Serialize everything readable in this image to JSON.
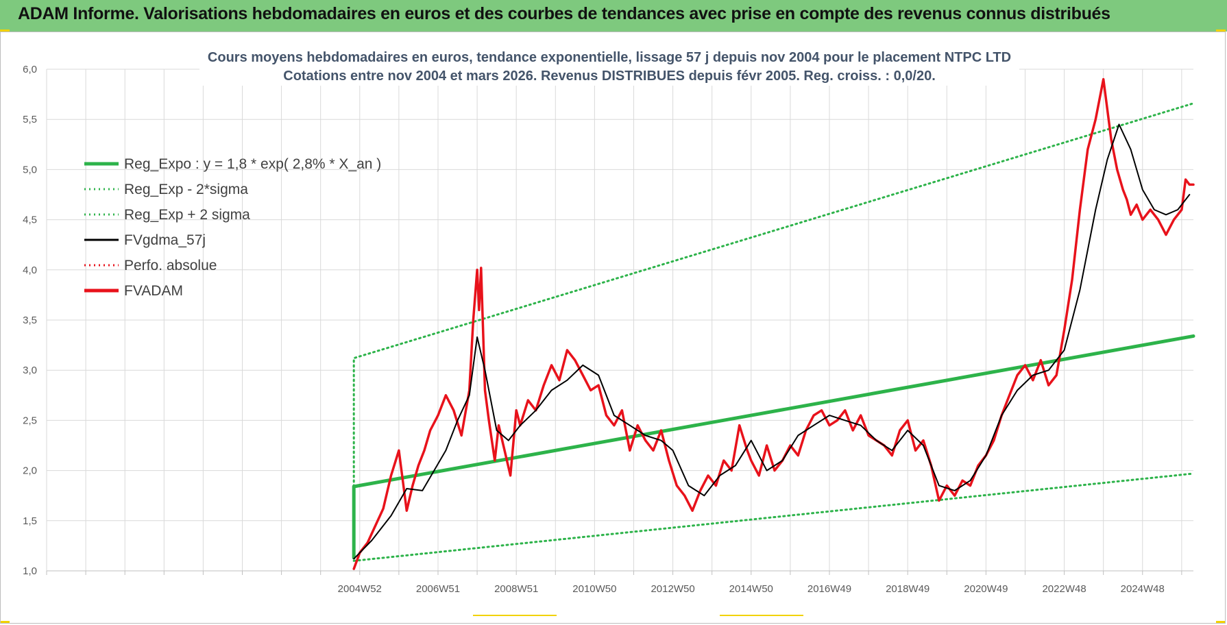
{
  "header": {
    "title": "ADAM Informe. Valorisations hebdomadaires en euros et des courbes de tendances avec prise en compte des revenus connus distribués"
  },
  "colors": {
    "banner": "#7ec97e",
    "reg_expo": "#2db34a",
    "sigma_bands": "#2db34a",
    "fvgdma": "#000000",
    "perfo_absolue": "#e8121b",
    "fvadam": "#e8121b"
  },
  "chart_data": {
    "type": "line",
    "title": "Cours moyens hebdomadaires en euros, tendance exponentielle, lissage 57 j depuis nov 2004 pour le placement NTPC LTD",
    "subtitle": "Cotations entre nov 2004 et mars 2026. Revenus DISTRIBUES depuis févr 2005. Reg. croiss. : 0,0/20.",
    "xlabel": "",
    "ylabel": "",
    "ylim": [
      1.0,
      6.0
    ],
    "yticks": [
      "1,0",
      "1,5",
      "2,0",
      "2,5",
      "3,0",
      "3,5",
      "4,0",
      "4,5",
      "5,0",
      "5,5",
      "6,0"
    ],
    "xlim": [
      1997.0,
      2026.3
    ],
    "xticks": [
      {
        "label": "2004W52",
        "x": 2005.0
      },
      {
        "label": "2006W51",
        "x": 2007.0
      },
      {
        "label": "2008W51",
        "x": 2009.0
      },
      {
        "label": "2010W50",
        "x": 2011.0
      },
      {
        "label": "2012W50",
        "x": 2013.0
      },
      {
        "label": "2014W50",
        "x": 2015.0
      },
      {
        "label": "2016W49",
        "x": 2017.0
      },
      {
        "label": "2018W49",
        "x": 2019.0
      },
      {
        "label": "2020W49",
        "x": 2021.0
      },
      {
        "label": "2022W48",
        "x": 2023.0
      },
      {
        "label": "2024W48",
        "x": 2025.0
      }
    ],
    "grid": true,
    "legend_placement": "top-left",
    "series": [
      {
        "name": "Reg_Expo : y = 1,8 * exp( 2,8% *  X_an )",
        "style": "solid-thick",
        "color": "#2db34a",
        "x": [
          2004.85,
          2004.85,
          2026.3
        ],
        "y": [
          1.13,
          1.84,
          3.34
        ]
      },
      {
        "name": "Reg_Exp - 2*sigma",
        "style": "dotted",
        "color": "#2db34a",
        "x": [
          2004.85,
          2026.3
        ],
        "y": [
          1.1,
          1.97
        ]
      },
      {
        "name": "Reg_Exp + 2 sigma",
        "style": "dotted",
        "color": "#2db34a",
        "x": [
          2004.85,
          2004.85,
          2026.3
        ],
        "y": [
          1.84,
          3.12,
          5.66
        ]
      },
      {
        "name": "FVgdma_57j",
        "style": "solid",
        "color": "#000000",
        "x": [
          2004.85,
          2005.3,
          2005.8,
          2006.2,
          2006.6,
          2006.9,
          2007.2,
          2007.5,
          2007.8,
          2008.0,
          2008.2,
          2008.5,
          2008.8,
          2009.1,
          2009.5,
          2009.9,
          2010.3,
          2010.7,
          2011.1,
          2011.5,
          2011.9,
          2012.3,
          2012.7,
          2013.0,
          2013.4,
          2013.8,
          2014.2,
          2014.6,
          2015.0,
          2015.4,
          2015.8,
          2016.2,
          2016.6,
          2017.0,
          2017.4,
          2017.8,
          2018.2,
          2018.6,
          2019.0,
          2019.4,
          2019.8,
          2020.2,
          2020.6,
          2021.0,
          2021.4,
          2021.8,
          2022.2,
          2022.6,
          2023.0,
          2023.4,
          2023.8,
          2024.1,
          2024.4,
          2024.7,
          2025.0,
          2025.3,
          2025.6,
          2025.9,
          2026.2
        ],
        "y": [
          1.12,
          1.3,
          1.55,
          1.82,
          1.8,
          2.0,
          2.2,
          2.5,
          2.75,
          3.33,
          3.0,
          2.4,
          2.3,
          2.45,
          2.6,
          2.8,
          2.9,
          3.05,
          2.95,
          2.55,
          2.45,
          2.35,
          2.3,
          2.2,
          1.85,
          1.75,
          1.95,
          2.05,
          2.3,
          2.0,
          2.1,
          2.35,
          2.45,
          2.55,
          2.5,
          2.45,
          2.3,
          2.2,
          2.4,
          2.25,
          1.85,
          1.8,
          1.9,
          2.15,
          2.55,
          2.8,
          2.95,
          3.0,
          3.2,
          3.8,
          4.6,
          5.1,
          5.45,
          5.2,
          4.8,
          4.6,
          4.55,
          4.6,
          4.75
        ]
      },
      {
        "name": "Perfo. absolue",
        "style": "dotted",
        "color": "#e8121b",
        "x": [],
        "y": []
      },
      {
        "name": "FVADAM",
        "style": "solid-thick",
        "color": "#e8121b",
        "x": [
          2004.85,
          2005.0,
          2005.2,
          2005.4,
          2005.6,
          2005.8,
          2006.0,
          2006.1,
          2006.2,
          2006.35,
          2006.5,
          2006.65,
          2006.8,
          2007.0,
          2007.2,
          2007.4,
          2007.6,
          2007.8,
          2007.9,
          2008.0,
          2008.05,
          2008.1,
          2008.2,
          2008.3,
          2008.45,
          2008.55,
          2008.7,
          2008.85,
          2009.0,
          2009.1,
          2009.3,
          2009.5,
          2009.7,
          2009.9,
          2010.1,
          2010.3,
          2010.5,
          2010.7,
          2010.9,
          2011.1,
          2011.3,
          2011.5,
          2011.7,
          2011.9,
          2012.1,
          2012.3,
          2012.5,
          2012.7,
          2012.9,
          2013.1,
          2013.3,
          2013.5,
          2013.7,
          2013.9,
          2014.1,
          2014.3,
          2014.5,
          2014.7,
          2014.9,
          2015.0,
          2015.2,
          2015.4,
          2015.6,
          2015.8,
          2016.0,
          2016.2,
          2016.4,
          2016.6,
          2016.8,
          2017.0,
          2017.2,
          2017.4,
          2017.6,
          2017.8,
          2018.0,
          2018.2,
          2018.4,
          2018.6,
          2018.8,
          2019.0,
          2019.2,
          2019.4,
          2019.6,
          2019.8,
          2020.0,
          2020.2,
          2020.4,
          2020.6,
          2020.8,
          2021.0,
          2021.2,
          2021.4,
          2021.6,
          2021.8,
          2022.0,
          2022.2,
          2022.4,
          2022.6,
          2022.8,
          2023.0,
          2023.2,
          2023.4,
          2023.6,
          2023.8,
          2024.0,
          2024.2,
          2024.35,
          2024.5,
          2024.6,
          2024.7,
          2024.85,
          2025.0,
          2025.2,
          2025.4,
          2025.6,
          2025.8,
          2026.0,
          2026.1,
          2026.2,
          2026.3
        ],
        "y": [
          1.02,
          1.18,
          1.28,
          1.45,
          1.62,
          1.95,
          2.2,
          1.9,
          1.6,
          1.85,
          2.05,
          2.2,
          2.4,
          2.55,
          2.75,
          2.6,
          2.35,
          2.8,
          3.5,
          4.0,
          3.6,
          4.02,
          2.8,
          2.5,
          2.1,
          2.45,
          2.2,
          1.95,
          2.6,
          2.45,
          2.7,
          2.6,
          2.85,
          3.05,
          2.9,
          3.2,
          3.1,
          2.95,
          2.8,
          2.85,
          2.55,
          2.45,
          2.6,
          2.2,
          2.45,
          2.3,
          2.2,
          2.4,
          2.1,
          1.85,
          1.75,
          1.6,
          1.8,
          1.95,
          1.85,
          2.1,
          2.0,
          2.45,
          2.2,
          2.1,
          1.95,
          2.25,
          2.0,
          2.1,
          2.25,
          2.15,
          2.4,
          2.55,
          2.6,
          2.45,
          2.5,
          2.6,
          2.4,
          2.55,
          2.35,
          2.3,
          2.25,
          2.15,
          2.4,
          2.5,
          2.2,
          2.3,
          2.05,
          1.7,
          1.85,
          1.75,
          1.9,
          1.85,
          2.05,
          2.15,
          2.3,
          2.55,
          2.75,
          2.95,
          3.05,
          2.9,
          3.1,
          2.85,
          2.95,
          3.4,
          3.9,
          4.6,
          5.2,
          5.5,
          5.9,
          5.3,
          5.0,
          4.8,
          4.7,
          4.55,
          4.65,
          4.5,
          4.6,
          4.5,
          4.35,
          4.5,
          4.6,
          4.9,
          4.85,
          4.85
        ]
      }
    ]
  }
}
